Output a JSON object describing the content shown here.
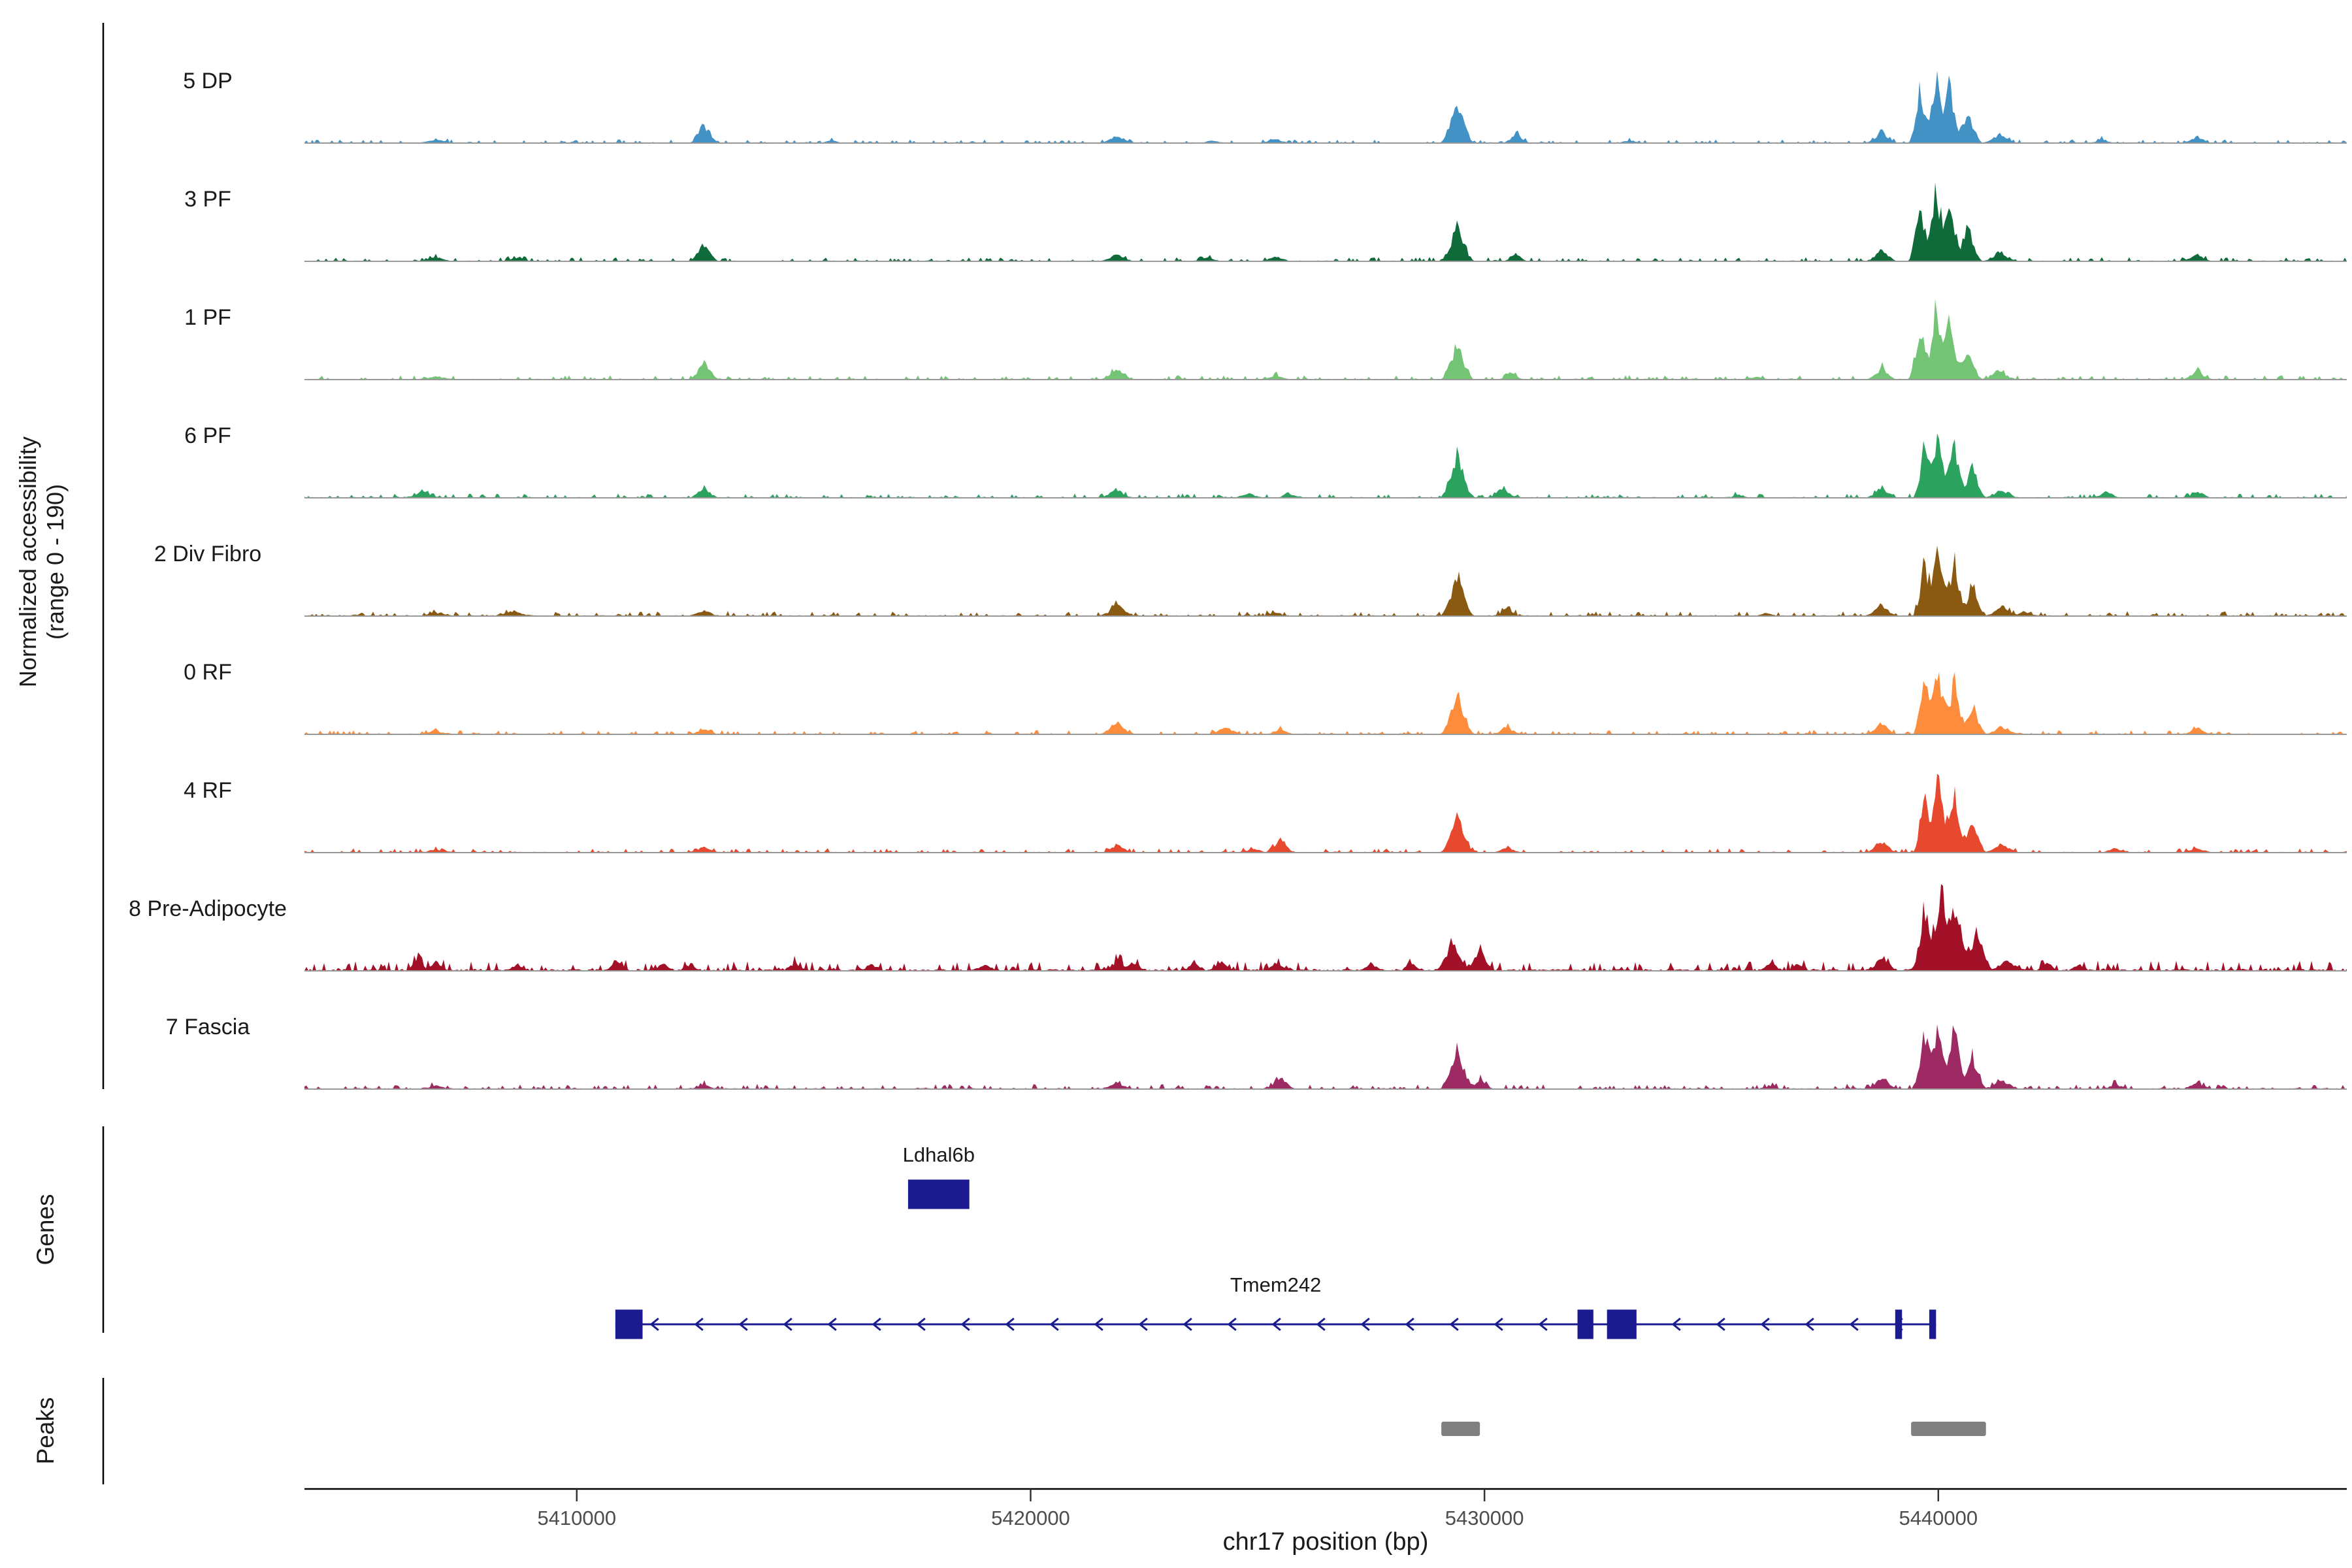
{
  "figure": {
    "y_axis_label_line1": "Normalized accessibility",
    "y_axis_label_line2": "(range 0 - 190)",
    "x_axis_title": "chr17 position (bp)",
    "genes_section_label": "Genes",
    "peaks_section_label": "Peaks"
  },
  "colors": {
    "gene": "#1b1b8f",
    "peak_region": "#808080",
    "baseline": "#999999",
    "axis": "#000000",
    "tick_label": "#4d4d4d",
    "text": "#1a1a1a"
  },
  "chart_data": {
    "type": "area",
    "title": "",
    "subtitle": "",
    "region": {
      "chrom": "chr17",
      "start": 5404000,
      "end": 5449000
    },
    "y_range": [
      0,
      190
    ],
    "grid": false,
    "legend": "none",
    "x_ticks": [
      5410000,
      5420000,
      5430000,
      5440000
    ],
    "x_tick_labels": [
      "5410000",
      "5420000",
      "5430000",
      "5440000"
    ],
    "tracks": [
      {
        "label": "5 DP",
        "color": "#4292c6",
        "noise": 5,
        "peaks": [
          [
            5406900,
            8,
            400
          ],
          [
            5412800,
            41,
            330
          ],
          [
            5415600,
            5,
            300
          ],
          [
            5421900,
            17,
            380
          ],
          [
            5424000,
            5,
            300
          ],
          [
            5425400,
            8,
            350
          ],
          [
            5429400,
            92,
            380
          ],
          [
            5430700,
            20,
            300
          ],
          [
            5433200,
            5,
            300
          ],
          [
            5438750,
            23,
            350
          ],
          [
            5439600,
            116,
            260
          ],
          [
            5439950,
            145,
            270
          ],
          [
            5440250,
            123,
            280
          ],
          [
            5440650,
            65,
            320
          ],
          [
            5441350,
            17,
            400
          ],
          [
            5443600,
            7,
            300
          ],
          [
            5445700,
            12,
            350
          ]
        ]
      },
      {
        "label": "3 PF",
        "color": "#0f6b3a",
        "noise": 6,
        "peaks": [
          [
            5406900,
            8,
            400
          ],
          [
            5408700,
            6,
            400
          ],
          [
            5412800,
            36,
            330
          ],
          [
            5421900,
            15,
            380
          ],
          [
            5423900,
            8,
            300
          ],
          [
            5425400,
            10,
            350
          ],
          [
            5429400,
            78,
            380
          ],
          [
            5430700,
            14,
            300
          ],
          [
            5438750,
            25,
            350
          ],
          [
            5439600,
            126,
            260
          ],
          [
            5439950,
            158,
            270
          ],
          [
            5440250,
            134,
            280
          ],
          [
            5440650,
            71,
            320
          ],
          [
            5441350,
            19,
            400
          ],
          [
            5445700,
            15,
            350
          ]
        ]
      },
      {
        "label": "1 PF",
        "color": "#74c476",
        "noise": 6,
        "peaks": [
          [
            5406900,
            7,
            400
          ],
          [
            5412800,
            36,
            330
          ],
          [
            5421900,
            24,
            380
          ],
          [
            5425400,
            8,
            350
          ],
          [
            5429400,
            72,
            380
          ],
          [
            5430600,
            12,
            300
          ],
          [
            5436000,
            5,
            300
          ],
          [
            5438750,
            24,
            350
          ],
          [
            5439600,
            118,
            260
          ],
          [
            5439950,
            147,
            270
          ],
          [
            5440250,
            125,
            280
          ],
          [
            5440650,
            66,
            320
          ],
          [
            5441350,
            18,
            400
          ],
          [
            5445700,
            17,
            350
          ]
        ]
      },
      {
        "label": "6 PF",
        "color": "#2ca25f",
        "noise": 6,
        "peaks": [
          [
            5406600,
            14,
            400
          ],
          [
            5412800,
            21,
            330
          ],
          [
            5421900,
            17,
            380
          ],
          [
            5424800,
            8,
            350
          ],
          [
            5425700,
            9,
            300
          ],
          [
            5429400,
            92,
            380
          ],
          [
            5430400,
            22,
            320
          ],
          [
            5435600,
            6,
            300
          ],
          [
            5438750,
            22,
            350
          ],
          [
            5439700,
            110,
            260
          ],
          [
            5440000,
            138,
            270
          ],
          [
            5440350,
            117,
            280
          ],
          [
            5440750,
            62,
            320
          ],
          [
            5441400,
            17,
            400
          ],
          [
            5443700,
            12,
            330
          ],
          [
            5445700,
            14,
            350
          ]
        ]
      },
      {
        "label": "2 Div Fibro",
        "color": "#8a5a13",
        "noise": 7,
        "peaks": [
          [
            5406900,
            7,
            400
          ],
          [
            5408600,
            9,
            500
          ],
          [
            5412800,
            12,
            350
          ],
          [
            5421900,
            24,
            380
          ],
          [
            5425400,
            7,
            350
          ],
          [
            5429400,
            86,
            380
          ],
          [
            5430500,
            16,
            300
          ],
          [
            5436200,
            6,
            300
          ],
          [
            5438750,
            24,
            350
          ],
          [
            5439700,
            118,
            260
          ],
          [
            5440000,
            147,
            270
          ],
          [
            5440350,
            125,
            280
          ],
          [
            5440750,
            66,
            320
          ],
          [
            5441400,
            18,
            400
          ],
          [
            5441900,
            8,
            300
          ]
        ]
      },
      {
        "label": "0 RF",
        "color": "#fd8d3c",
        "noise": 6,
        "peaks": [
          [
            5406900,
            7,
            400
          ],
          [
            5412800,
            10,
            350
          ],
          [
            5421900,
            26,
            380
          ],
          [
            5424300,
            14,
            400
          ],
          [
            5425500,
            10,
            350
          ],
          [
            5429400,
            92,
            380
          ],
          [
            5430500,
            16,
            300
          ],
          [
            5438750,
            23,
            350
          ],
          [
            5439700,
            113,
            260
          ],
          [
            5440000,
            141,
            270
          ],
          [
            5440350,
            120,
            280
          ],
          [
            5440750,
            63,
            320
          ],
          [
            5441400,
            17,
            400
          ],
          [
            5445700,
            12,
            350
          ]
        ]
      },
      {
        "label": "4 RF",
        "color": "#e6492d",
        "noise": 6,
        "peaks": [
          [
            5406900,
            6,
            400
          ],
          [
            5412800,
            11,
            350
          ],
          [
            5421900,
            14,
            380
          ],
          [
            5424900,
            8,
            350
          ],
          [
            5425500,
            26,
            350
          ],
          [
            5429400,
            74,
            380
          ],
          [
            5430500,
            12,
            300
          ],
          [
            5438750,
            24,
            350
          ],
          [
            5439700,
            122,
            260
          ],
          [
            5440000,
            152,
            270
          ],
          [
            5440350,
            129,
            280
          ],
          [
            5440750,
            68,
            320
          ],
          [
            5441400,
            18,
            400
          ],
          [
            5443900,
            9,
            320
          ],
          [
            5445700,
            9,
            350
          ]
        ]
      },
      {
        "label": "8 Pre-Adipocyte",
        "color": "#a31128",
        "noise": 14,
        "peaks": [
          [
            5406500,
            20,
            280
          ],
          [
            5406900,
            17,
            280
          ],
          [
            5408700,
            13,
            280
          ],
          [
            5410900,
            17,
            280
          ],
          [
            5411900,
            14,
            280
          ],
          [
            5412500,
            13,
            280
          ],
          [
            5414800,
            13,
            280
          ],
          [
            5416500,
            12,
            280
          ],
          [
            5419000,
            12,
            280
          ],
          [
            5421900,
            19,
            350
          ],
          [
            5422300,
            16,
            280
          ],
          [
            5423600,
            17,
            280
          ],
          [
            5424200,
            18,
            280
          ],
          [
            5425400,
            15,
            300
          ],
          [
            5427500,
            13,
            280
          ],
          [
            5428400,
            14,
            280
          ],
          [
            5429300,
            62,
            400
          ],
          [
            5429900,
            48,
            320
          ],
          [
            5436300,
            15,
            280
          ],
          [
            5436900,
            13,
            280
          ],
          [
            5438750,
            27,
            380
          ],
          [
            5439700,
            134,
            300
          ],
          [
            5440050,
            168,
            310
          ],
          [
            5440400,
            143,
            320
          ],
          [
            5440850,
            76,
            360
          ],
          [
            5441500,
            20,
            400
          ],
          [
            5442400,
            15,
            280
          ],
          [
            5443100,
            12,
            280
          ]
        ]
      },
      {
        "label": "7 Fascia",
        "color": "#9e2a63",
        "noise": 7,
        "peaks": [
          [
            5406900,
            6,
            400
          ],
          [
            5412800,
            9,
            350
          ],
          [
            5421900,
            13,
            380
          ],
          [
            5425500,
            24,
            350
          ],
          [
            5429400,
            84,
            380
          ],
          [
            5429900,
            20,
            320
          ],
          [
            5436300,
            7,
            300
          ],
          [
            5438750,
            24,
            350
          ],
          [
            5439700,
            122,
            260
          ],
          [
            5440000,
            152,
            270
          ],
          [
            5440350,
            129,
            280
          ],
          [
            5440750,
            68,
            320
          ],
          [
            5441400,
            18,
            400
          ],
          [
            5443900,
            10,
            320
          ],
          [
            5445700,
            13,
            350
          ]
        ]
      }
    ],
    "genes": [
      {
        "name": "Ldhal6b",
        "strand": ".",
        "start": 5417300,
        "end": 5418650,
        "exons": [
          [
            5417300,
            5418650
          ]
        ]
      },
      {
        "name": "Tmem242",
        "strand": "-",
        "start": 5410850,
        "end": 5439950,
        "exons": [
          [
            5410850,
            5411450
          ],
          [
            5432050,
            5432400
          ],
          [
            5432700,
            5433350
          ],
          [
            5439050,
            5439200
          ],
          [
            5439800,
            5439950
          ]
        ]
      }
    ],
    "peaks_track": [
      [
        5429050,
        5429900
      ],
      [
        5439400,
        5441050
      ]
    ]
  }
}
